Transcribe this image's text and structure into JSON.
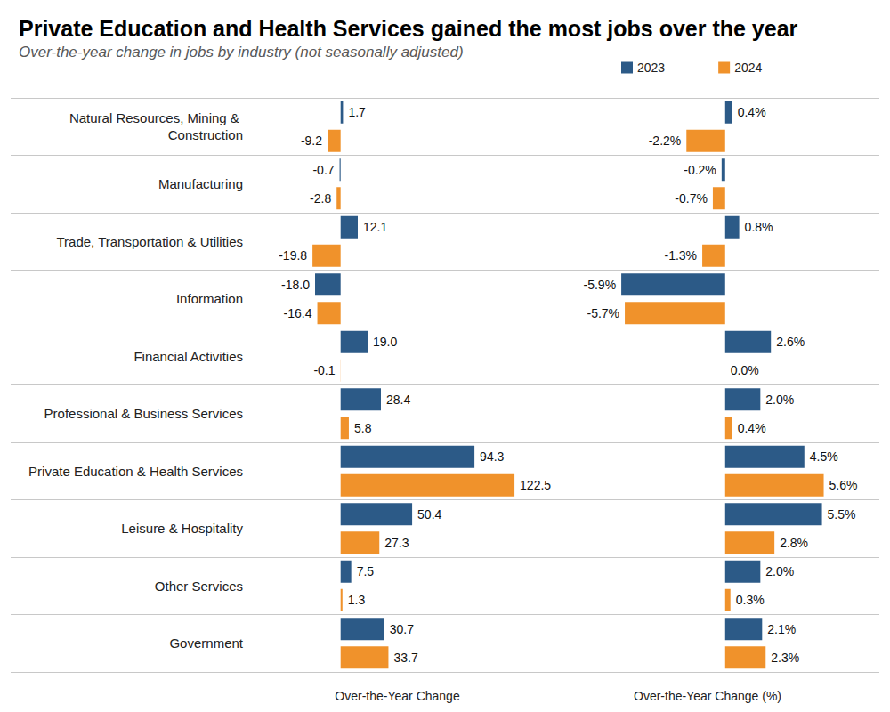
{
  "chart_data": [
    {
      "type": "bar",
      "title": "Private Education and Health Services gained the most jobs over the year",
      "subtitle": "Over-the-year change in jobs by industry (not seasonally adjusted)",
      "x_label": "Over-the-Year Change",
      "orientation": "horizontal",
      "data_labels": true,
      "tick_labels": "y",
      "grid": false,
      "legend": "top-right",
      "xlim": [
        -60,
        140
      ],
      "categories": [
        "Natural Resources, Mining & Construction",
        "Manufacturing",
        "Trade, Transportation & Utilities",
        "Information",
        "Financial Activities",
        "Professional & Business Services",
        "Private Education & Health Services",
        "Leisure & Hospitality",
        "Other Services",
        "Government"
      ],
      "series": [
        {
          "name": "2023",
          "color": "#2c5a87",
          "values": [
            1.7,
            -0.7,
            12.1,
            -18.0,
            19.0,
            28.4,
            94.3,
            50.4,
            7.5,
            30.7
          ],
          "value_labels": [
            "1.7",
            "-0.7",
            "12.1",
            "-18.0",
            "19.0",
            "28.4",
            "94.3",
            "50.4",
            "7.5",
            "30.7"
          ]
        },
        {
          "name": "2024",
          "color": "#f0922b",
          "values": [
            -9.2,
            -2.8,
            -19.8,
            -16.4,
            -0.1,
            5.8,
            122.5,
            27.3,
            1.3,
            33.7
          ],
          "value_labels": [
            "-9.2",
            "-2.8",
            "-19.8",
            "-16.4",
            "-0.1",
            "5.8",
            "122.5",
            "27.3",
            "1.3",
            "33.7"
          ]
        }
      ]
    },
    {
      "type": "bar",
      "x_label": "Over-the-Year Change (%)",
      "orientation": "horizontal",
      "data_labels": true,
      "tick_labels": false,
      "grid": false,
      "xlim": [
        -10,
        8
      ],
      "categories": [
        "Natural Resources, Mining & Construction",
        "Manufacturing",
        "Trade, Transportation & Utilities",
        "Information",
        "Financial Activities",
        "Professional & Business Services",
        "Private Education & Health Services",
        "Leisure & Hospitality",
        "Other Services",
        "Government"
      ],
      "series": [
        {
          "name": "2023",
          "color": "#2c5a87",
          "values": [
            0.4,
            -0.2,
            0.8,
            -5.9,
            2.6,
            2.0,
            4.5,
            5.5,
            2.0,
            2.1
          ],
          "value_labels": [
            "0.4%",
            "-0.2%",
            "0.8%",
            "-5.9%",
            "2.6%",
            "2.0%",
            "4.5%",
            "5.5%",
            "2.0%",
            "2.1%"
          ]
        },
        {
          "name": "2024",
          "color": "#f0922b",
          "values": [
            -2.2,
            -0.7,
            -1.3,
            -5.7,
            0.0,
            0.4,
            5.6,
            2.8,
            0.3,
            2.3
          ],
          "value_labels": [
            "-2.2%",
            "-0.7%",
            "-1.3%",
            "-5.7%",
            "0.0%",
            "0.4%",
            "5.6%",
            "2.8%",
            "0.3%",
            "2.3%"
          ]
        }
      ]
    }
  ]
}
